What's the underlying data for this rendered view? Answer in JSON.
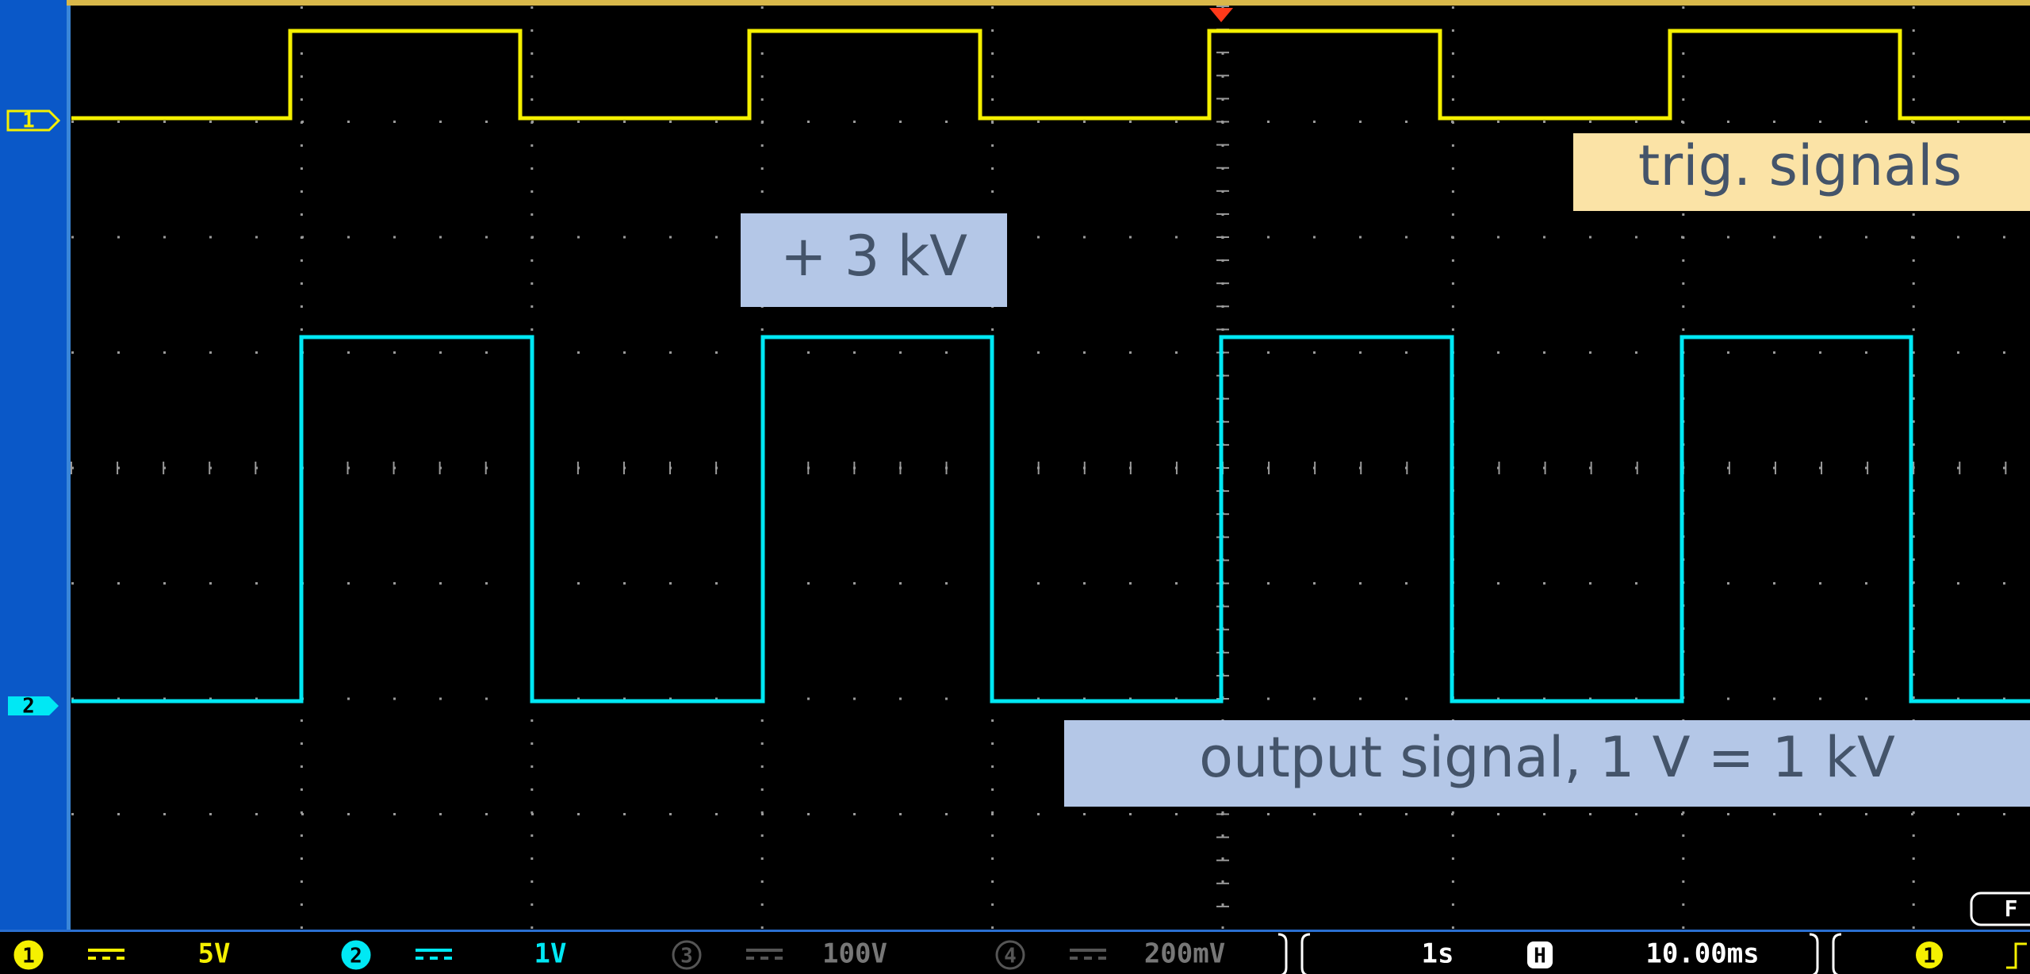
{
  "channel_markers": [
    "1",
    "2"
  ],
  "annotations": {
    "trigger": "trig. signals",
    "amplitude": "+ 3 kV",
    "output": "output signal, 1 V = 1 kV"
  },
  "status_bar": {
    "channels": [
      {
        "number": "1",
        "scale": "5V"
      },
      {
        "number": "2",
        "scale": "1V"
      },
      {
        "number": "3",
        "scale": "100V"
      },
      {
        "number": "4",
        "scale": "200mV"
      }
    ],
    "sample_time": "1s",
    "horizontal_marker": "H",
    "timebase": "10.00ms",
    "trigger_source": "1",
    "frequency_marker": "F"
  }
}
